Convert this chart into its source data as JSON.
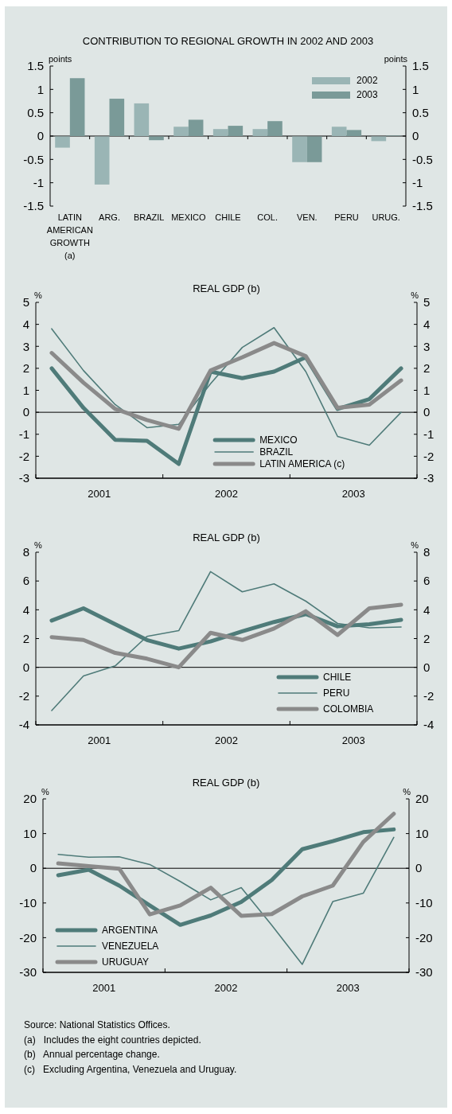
{
  "chart_data": [
    {
      "type": "bar",
      "title": "CONTRIBUTION TO REGIONAL GROWTH IN 2002 AND 2003",
      "ylabel": "points",
      "y2label": "points",
      "categories": [
        "LATIN AMERICAN GROWTH (a)",
        "ARG.",
        "BRAZIL",
        "MEXICO",
        "CHILE",
        "COL.",
        "VEN.",
        "PERU",
        "URUG."
      ],
      "series": [
        {
          "name": "2002",
          "color": "#9ab5b5",
          "values": [
            -0.24,
            -1.03,
            0.7,
            0.2,
            0.15,
            0.15,
            -0.55,
            0.2,
            -0.1
          ]
        },
        {
          "name": "2003",
          "color": "#7a9a98",
          "values": [
            1.24,
            0.8,
            -0.08,
            0.35,
            0.22,
            0.32,
            -0.55,
            0.13,
            0.01
          ]
        }
      ],
      "ylim": [
        -1.5,
        1.5
      ],
      "yticks": [
        -1.5,
        -1,
        -0.5,
        0,
        0.5,
        1,
        1.5
      ],
      "y2lim": [
        -1.5,
        1.5
      ],
      "y2ticks": [
        -1.5,
        -1,
        -0.5,
        0,
        0.5,
        1,
        1.5
      ],
      "legend": "top right"
    },
    {
      "type": "line",
      "title": "REAL GDP (b)",
      "ylabel": "%",
      "y2label": "%",
      "x": [
        2001.125,
        2001.375,
        2001.625,
        2001.875,
        2002.125,
        2002.375,
        2002.625,
        2002.875,
        2003.125,
        2003.375,
        2003.625,
        2003.875
      ],
      "series": [
        {
          "name": "MEXICO",
          "color": "#4f7b79",
          "values": [
            2.0,
            0.2,
            -1.25,
            -1.3,
            -2.35,
            1.85,
            1.55,
            1.85,
            2.5,
            0.15,
            0.6,
            2.0
          ]
        },
        {
          "name": "BRAZIL",
          "color": "#4f7b79",
          "values": [
            3.8,
            1.9,
            0.35,
            -0.7,
            -0.55,
            1.3,
            2.95,
            3.85,
            1.85,
            -1.1,
            -1.5,
            0.0
          ]
        },
        {
          "name": "LATIN AMERICA (c)",
          "color": "#8a8a8a",
          "values": [
            2.7,
            1.35,
            0.15,
            -0.35,
            -0.75,
            1.9,
            2.5,
            3.15,
            2.55,
            0.2,
            0.35,
            1.45
          ]
        }
      ],
      "xlim": [
        2001,
        2004
      ],
      "xticks": [
        {
          "value": 2001,
          "label": null
        },
        {
          "value": 2001.5,
          "label": "2001"
        },
        {
          "value": 2002,
          "label": null
        },
        {
          "value": 2002.5,
          "label": "2002"
        },
        {
          "value": 2003,
          "label": null
        },
        {
          "value": 2003.5,
          "label": "2003"
        },
        {
          "value": 2004,
          "label": null
        }
      ],
      "ylim": [
        -3,
        5
      ],
      "yticks": [
        -3,
        -2,
        -1,
        0,
        1,
        2,
        3,
        4,
        5
      ],
      "y2lim": [
        -3,
        5
      ],
      "y2ticks": [
        -3,
        -2,
        -1,
        0,
        1,
        2,
        3,
        4,
        5
      ],
      "ref_lines": [
        {
          "axis": "y",
          "value": 0,
          "color": "#000000"
        }
      ],
      "legend": "bottom",
      "marker": "none",
      "line_style": "solid"
    },
    {
      "type": "line",
      "title": "REAL GDP (b)",
      "ylabel": "%",
      "y2label": "%",
      "x": [
        2001.125,
        2001.375,
        2001.625,
        2001.875,
        2002.125,
        2002.375,
        2002.625,
        2002.875,
        2003.125,
        2003.375,
        2003.625,
        2003.875
      ],
      "series": [
        {
          "name": "CHILE",
          "color": "#4f7b79",
          "values": [
            3.25,
            4.1,
            3.0,
            1.9,
            1.3,
            1.8,
            2.5,
            3.15,
            3.7,
            2.85,
            3.0,
            3.3
          ]
        },
        {
          "name": "PERU",
          "color": "#4f7b79",
          "values": [
            -3.0,
            -0.6,
            0.1,
            2.15,
            2.55,
            6.65,
            5.25,
            5.8,
            4.6,
            3.05,
            2.75,
            2.8
          ]
        },
        {
          "name": "COLOMBIA",
          "color": "#8a8a8a",
          "values": [
            2.1,
            1.9,
            1.0,
            0.6,
            0.0,
            2.4,
            1.9,
            2.7,
            3.9,
            2.25,
            4.1,
            4.35
          ]
        }
      ],
      "xlim": [
        2001,
        2004
      ],
      "xticks": [
        {
          "value": 2001,
          "label": null
        },
        {
          "value": 2001.5,
          "label": "2001"
        },
        {
          "value": 2002,
          "label": null
        },
        {
          "value": 2002.5,
          "label": "2002"
        },
        {
          "value": 2003,
          "label": null
        },
        {
          "value": 2003.5,
          "label": "2003"
        },
        {
          "value": 2004,
          "label": null
        }
      ],
      "ylim": [
        -4,
        8
      ],
      "yticks": [
        -4,
        -2,
        0,
        2,
        4,
        6,
        8
      ],
      "y2lim": [
        -4,
        8
      ],
      "y2ticks": [
        -4,
        -2,
        0,
        2,
        4,
        6,
        8
      ],
      "ref_lines": [
        {
          "axis": "y",
          "value": 0,
          "color": "#000000"
        }
      ],
      "legend": "bottom right",
      "marker": "none",
      "line_style": "solid"
    },
    {
      "type": "line",
      "title": "REAL GDP (b)",
      "ylabel": "%",
      "y2label": "%",
      "x": [
        2001.125,
        2001.375,
        2001.625,
        2001.875,
        2002.125,
        2002.375,
        2002.625,
        2002.875,
        2003.125,
        2003.375,
        2003.625,
        2003.875
      ],
      "series": [
        {
          "name": "ARGENTINA",
          "color": "#4f7b79",
          "values": [
            -2.0,
            -0.4,
            -5.0,
            -10.7,
            -16.3,
            -13.6,
            -9.7,
            -3.4,
            5.5,
            7.8,
            10.4,
            11.2
          ]
        },
        {
          "name": "VENEZUELA",
          "color": "#4f7b79",
          "values": [
            4.0,
            3.2,
            3.3,
            1.1,
            -3.8,
            -9.1,
            -5.6,
            -16.4,
            -27.7,
            -9.6,
            -7.2,
            8.9
          ]
        },
        {
          "name": "URUGUAY",
          "color": "#8a8a8a",
          "values": [
            1.4,
            0.6,
            -0.1,
            -13.3,
            -10.7,
            -5.6,
            -13.7,
            -13.2,
            -8.1,
            -5.0,
            7.6,
            15.7
          ]
        }
      ],
      "xlim": [
        2001,
        2004
      ],
      "xticks": [
        {
          "value": 2001,
          "label": null
        },
        {
          "value": 2001.5,
          "label": "2001"
        },
        {
          "value": 2002,
          "label": null
        },
        {
          "value": 2002.5,
          "label": "2002"
        },
        {
          "value": 2003,
          "label": null
        },
        {
          "value": 2003.5,
          "label": "2003"
        },
        {
          "value": 2004,
          "label": null
        }
      ],
      "ylim": [
        -30,
        20
      ],
      "yticks": [
        -30,
        -20,
        -10,
        0,
        10,
        20
      ],
      "y2lim": [
        -30,
        20
      ],
      "y2ticks": [
        -30,
        -20,
        -10,
        0,
        10,
        20
      ],
      "ref_lines": [
        {
          "axis": "y",
          "value": 0,
          "color": "#000000"
        }
      ],
      "legend": "bottom left",
      "marker": "none",
      "line_style": "solid",
      "annotations": [
        "Source: National Statistics Offices.",
        "(a)   Includes the eight countries depicted.",
        "(b)   Annual percentage change.",
        "(c)   Excluding Argentina, Venezuela and Uruguay."
      ]
    }
  ]
}
